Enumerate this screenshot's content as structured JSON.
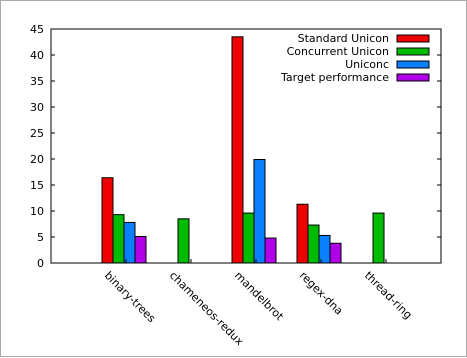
{
  "chart_data": {
    "type": "bar",
    "title": "",
    "xlabel": "",
    "ylabel": "",
    "ylim": [
      0,
      45
    ],
    "yticks": [
      0,
      5,
      10,
      15,
      20,
      25,
      30,
      35,
      40,
      45
    ],
    "grid": false,
    "legend_position": "top-right",
    "categories": [
      "binary-trees",
      "chameneos-redux",
      "mandelbrot",
      "regex-dna",
      "thread-ring"
    ],
    "series": [
      {
        "name": "Standard Unicon",
        "color": "#ee0000",
        "values": [
          16.4,
          null,
          43.5,
          11.3,
          null
        ]
      },
      {
        "name": "Concurrent Unicon",
        "color": "#00bb00",
        "values": [
          9.3,
          8.5,
          9.6,
          7.3,
          9.6
        ]
      },
      {
        "name": "Uniconc",
        "color": "#0a80ff",
        "values": [
          7.8,
          null,
          19.9,
          5.3,
          null
        ]
      },
      {
        "name": "Target performance",
        "color": "#b000e8",
        "values": [
          5.1,
          null,
          4.8,
          3.8,
          null
        ]
      }
    ]
  }
}
